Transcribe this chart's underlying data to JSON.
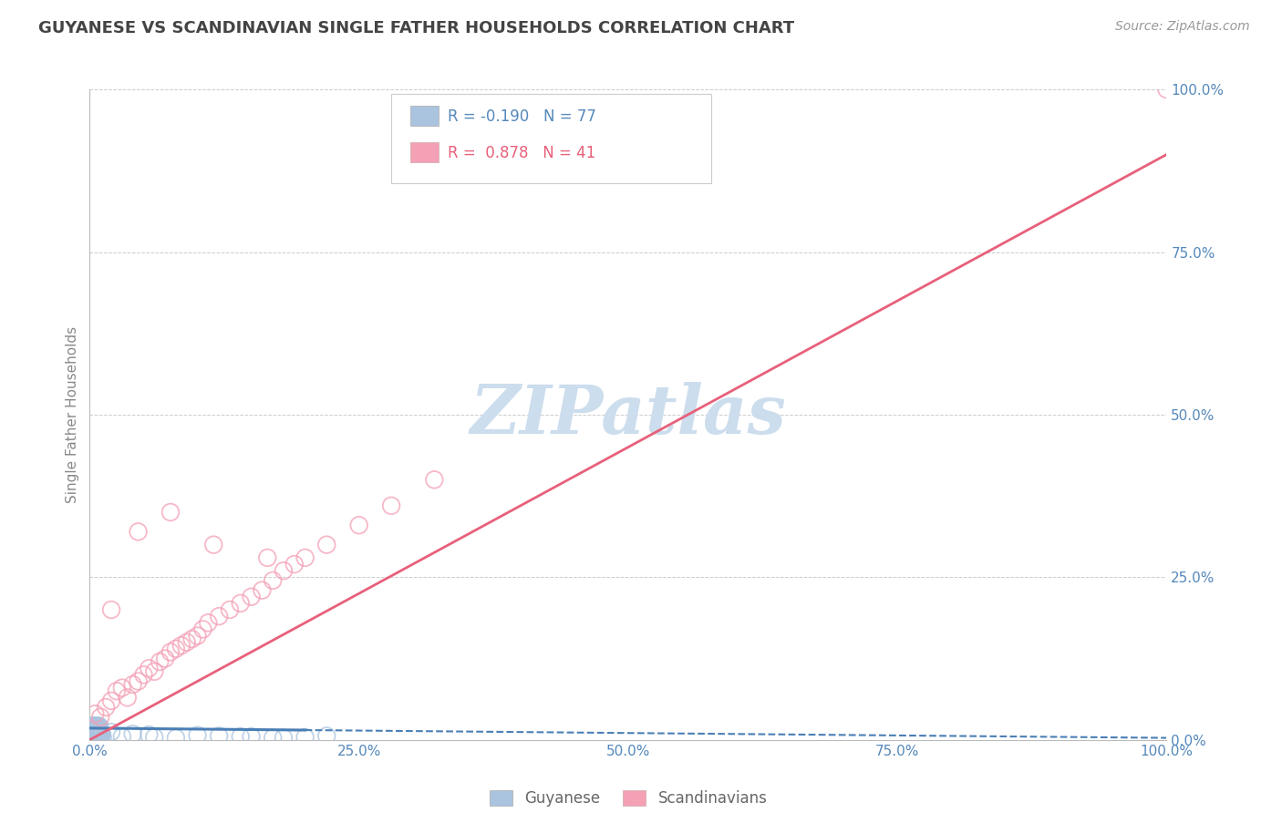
{
  "title": "GUYANESE VS SCANDINAVIAN SINGLE FATHER HOUSEHOLDS CORRELATION CHART",
  "source": "Source: ZipAtlas.com",
  "ylabel": "Single Father Households",
  "watermark": "ZIPatlas",
  "legend_label1": "Guyanese",
  "legend_label2": "Scandinavians",
  "r1": -0.19,
  "n1": 77,
  "r2": 0.878,
  "n2": 41,
  "color_blue": "#aac4e0",
  "color_pink": "#f4a0b5",
  "color_blue_line": "#4a7fb5",
  "color_pink_line": "#e8607a",
  "color_blue_text": "#5588bb",
  "color_pink_text": "#e8607a",
  "background_color": "#ffffff",
  "grid_color": "#cccccc",
  "axis_label_color": "#888888",
  "title_color": "#444444",
  "watermark_color": "#ccdded",
  "guyanese_x": [
    0.1,
    0.2,
    0.3,
    0.4,
    0.5,
    0.6,
    0.7,
    0.8,
    0.9,
    1.0,
    0.2,
    0.3,
    0.4,
    0.5,
    0.6,
    0.7,
    0.8,
    0.9,
    1.0,
    1.1,
    0.1,
    0.2,
    0.3,
    0.4,
    0.5,
    0.6,
    0.7,
    0.8,
    0.9,
    1.0,
    0.3,
    0.4,
    0.5,
    0.6,
    0.7,
    0.8,
    0.9,
    1.0,
    1.1,
    1.2,
    0.2,
    0.3,
    0.4,
    0.5,
    0.6,
    0.7,
    0.8,
    0.9,
    1.0,
    1.1,
    0.1,
    0.2,
    0.3,
    0.4,
    0.5,
    0.6,
    0.7,
    0.8,
    0.9,
    1.0,
    0.3,
    0.4,
    0.5,
    3.0,
    5.5,
    8.0,
    12.0,
    15.0,
    18.0,
    20.0,
    2.0,
    4.0,
    6.0,
    10.0,
    14.0,
    17.0,
    22.0
  ],
  "guyanese_y": [
    1.5,
    2.0,
    1.2,
    0.8,
    1.0,
    0.5,
    1.8,
    1.3,
    0.9,
    1.1,
    0.7,
    1.6,
    2.1,
    1.4,
    0.6,
    0.3,
    1.9,
    1.2,
    0.8,
    1.0,
    0.4,
    1.7,
    2.2,
    1.3,
    0.9,
    0.6,
    1.5,
    1.8,
    1.1,
    0.7,
    2.0,
    1.4,
    0.5,
    0.8,
    1.2,
    1.6,
    2.1,
    1.3,
    0.9,
    0.4,
    1.1,
    1.5,
    1.9,
    0.7,
    0.3,
    1.3,
    1.7,
    2.0,
    1.2,
    0.8,
    1.0,
    1.4,
    0.6,
    0.9,
    0.5,
    1.8,
    2.2,
    1.5,
    1.1,
    0.4,
    1.6,
    2.0,
    1.3,
    0.5,
    0.8,
    0.3,
    0.6,
    0.5,
    0.3,
    0.4,
    1.2,
    0.9,
    0.4,
    0.7,
    0.5,
    0.3,
    0.6
  ],
  "scandi_x": [
    0.5,
    1.0,
    1.5,
    2.0,
    2.5,
    3.0,
    3.5,
    4.0,
    4.5,
    5.0,
    5.5,
    6.0,
    6.5,
    7.0,
    7.5,
    8.0,
    8.5,
    9.0,
    9.5,
    10.0,
    10.5,
    11.0,
    12.0,
    13.0,
    14.0,
    15.0,
    16.0,
    17.0,
    18.0,
    19.0,
    20.0,
    22.0,
    25.0,
    28.0,
    32.0,
    100.0,
    2.0,
    4.5,
    7.5,
    11.5,
    16.5
  ],
  "scandi_y": [
    4.0,
    3.5,
    5.0,
    6.0,
    7.5,
    8.0,
    6.5,
    8.5,
    9.0,
    10.0,
    11.0,
    10.5,
    12.0,
    12.5,
    13.5,
    14.0,
    14.5,
    15.0,
    15.5,
    16.0,
    17.0,
    18.0,
    19.0,
    20.0,
    21.0,
    22.0,
    23.0,
    24.5,
    26.0,
    27.0,
    28.0,
    30.0,
    33.0,
    36.0,
    40.0,
    100.0,
    20.0,
    32.0,
    35.0,
    30.0,
    28.0
  ],
  "xlim": [
    0,
    100
  ],
  "ylim": [
    0,
    100
  ],
  "xticks": [
    0,
    25,
    50,
    75,
    100
  ],
  "yticks": [
    0,
    25,
    50,
    75,
    100
  ],
  "xtick_labels": [
    "0.0%",
    "25.0%",
    "50.0%",
    "75.0%",
    "100.0%"
  ],
  "ytick_labels": [
    "0.0%",
    "25.0%",
    "50.0%",
    "75.0%",
    "100.0%"
  ],
  "blue_line_x0": 0,
  "blue_line_y0": 1.8,
  "blue_line_x1": 100,
  "blue_line_y1": 0.3,
  "blue_solid_end": 20,
  "pink_line_x0": 0,
  "pink_line_y0": 0,
  "pink_line_x1": 100,
  "pink_line_y1": 90
}
